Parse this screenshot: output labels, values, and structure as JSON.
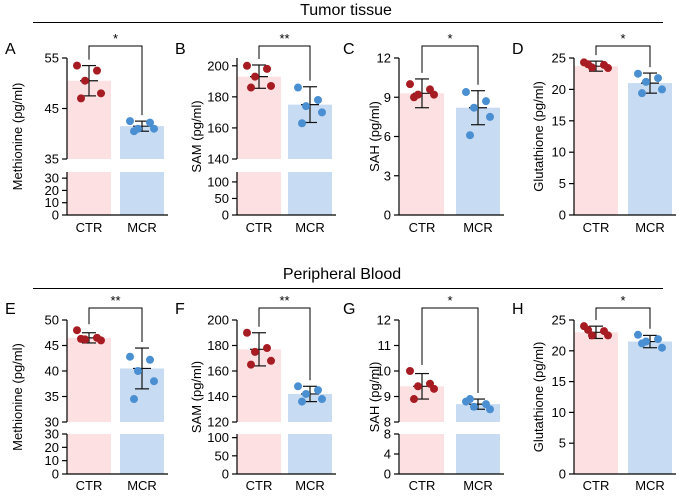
{
  "figure": {
    "section_titles": [
      "Tumor tissue",
      "Peripheral Blood"
    ]
  },
  "colors": {
    "ctr_bar": "#fde1e2",
    "mcr_bar": "#c7dbf2",
    "ctr_point": "#a71c22",
    "mcr_point": "#4a8fd1"
  },
  "chart_data": [
    {
      "type": "bar",
      "panel_letter": "A",
      "section": "Tumor tissue",
      "ylabel": "Methionine (pg/ml)",
      "categories": [
        "CTR",
        "MCR"
      ],
      "means": [
        50.5,
        41.5
      ],
      "sd": [
        3.0,
        1.0
      ],
      "points": [
        [
          53.5,
          52.5,
          50.5,
          48,
          47
        ],
        [
          42.5,
          42.2,
          41,
          41,
          40.5
        ]
      ],
      "axis": {
        "upper": {
          "min": 35,
          "max": 55,
          "ticks": [
            35,
            45,
            55
          ]
        },
        "lower": {
          "min": 0,
          "max": 35,
          "ticks": [
            0,
            10,
            20,
            30
          ]
        }
      },
      "significance": "*"
    },
    {
      "type": "bar",
      "panel_letter": "B",
      "section": "Tumor tissue",
      "ylabel": "SAM (pg/ml)",
      "categories": [
        "CTR",
        "MCR"
      ],
      "means": [
        193,
        175
      ],
      "sd": [
        7.5,
        11.5
      ],
      "points": [
        [
          200,
          198,
          193,
          187,
          186
        ],
        [
          186,
          178,
          174,
          170,
          163
        ]
      ],
      "axis": {
        "upper": {
          "min": 140,
          "max": 205,
          "ticks": [
            140,
            160,
            180,
            200
          ]
        },
        "lower": {
          "min": 0,
          "max": 130,
          "ticks": [
            0,
            50,
            100
          ]
        }
      },
      "significance": "**"
    },
    {
      "type": "bar",
      "panel_letter": "C",
      "section": "Tumor tissue",
      "ylabel": "SAH (pg/ml)",
      "categories": [
        "CTR",
        "MCR"
      ],
      "means": [
        9.3,
        8.2
      ],
      "sd": [
        1.1,
        1.3
      ],
      "points": [
        [
          10,
          9.6,
          9.2,
          9.2,
          9.0
        ],
        [
          9.4,
          8.7,
          8.2,
          7.5,
          6.1
        ]
      ],
      "axis": {
        "single": {
          "min": 0,
          "max": 12,
          "ticks": [
            0,
            3,
            6,
            9,
            12
          ]
        }
      },
      "significance": "*"
    },
    {
      "type": "bar",
      "panel_letter": "D",
      "section": "Tumor tissue",
      "ylabel": "Glutathione (pg/ml)",
      "categories": [
        "CTR",
        "MCR"
      ],
      "means": [
        23.7,
        21.0
      ],
      "sd": [
        0.8,
        1.6
      ],
      "points": [
        [
          24.3,
          23.9,
          23.5,
          23.4,
          24.0
        ],
        [
          22.5,
          21.8,
          21.2,
          20.0,
          19.4
        ]
      ],
      "axis": {
        "single": {
          "min": 0,
          "max": 25,
          "ticks": [
            0,
            5,
            10,
            15,
            20,
            25
          ]
        }
      },
      "significance": "*"
    },
    {
      "type": "bar",
      "panel_letter": "E",
      "section": "Peripheral Blood",
      "ylabel": "Methionine (pg/ml)",
      "categories": [
        "CTR",
        "MCR"
      ],
      "means": [
        46.5,
        40.5
      ],
      "sd": [
        1.0,
        4.0
      ],
      "points": [
        [
          48.0,
          46.5,
          46.2,
          46.0,
          46.3
        ],
        [
          42.8,
          42.2,
          40.0,
          38.0,
          34.5
        ]
      ],
      "axis": {
        "upper": {
          "min": 30,
          "max": 50,
          "ticks": [
            30,
            35,
            40,
            45,
            50
          ]
        },
        "lower": {
          "min": 0,
          "max": 30,
          "ticks": [
            0,
            10,
            20,
            30
          ]
        }
      },
      "significance": "**"
    },
    {
      "type": "bar",
      "panel_letter": "F",
      "section": "Peripheral Blood",
      "ylabel": "SAM (pg/ml)",
      "categories": [
        "CTR",
        "MCR"
      ],
      "means": [
        177,
        142
      ],
      "sd": [
        13,
        6
      ],
      "points": [
        [
          190,
          178,
          175,
          168,
          165
        ],
        [
          148,
          145,
          142,
          138,
          136
        ]
      ],
      "axis": {
        "upper": {
          "min": 120,
          "max": 200,
          "ticks": [
            120,
            140,
            160,
            180,
            200
          ]
        },
        "lower": {
          "min": 0,
          "max": 110,
          "ticks": [
            0,
            50,
            100
          ]
        }
      },
      "significance": "**"
    },
    {
      "type": "bar",
      "panel_letter": "G",
      "section": "Peripheral Blood",
      "ylabel": "SAH (pg/ml)",
      "categories": [
        "CTR",
        "MCR"
      ],
      "means": [
        9.4,
        8.7
      ],
      "sd": [
        0.5,
        0.2
      ],
      "points": [
        [
          10.0,
          9.5,
          9.4,
          9.3,
          8.9
        ],
        [
          8.8,
          8.7,
          8.6,
          8.5,
          8.9
        ]
      ],
      "axis": {
        "upper": {
          "min": 8,
          "max": 12,
          "ticks": [
            8,
            9,
            10,
            11,
            12
          ]
        },
        "lower": {
          "min": 0,
          "max": 8,
          "ticks": [
            0,
            4,
            8
          ]
        }
      },
      "significance": "*"
    },
    {
      "type": "bar",
      "panel_letter": "H",
      "section": "Peripheral Blood",
      "ylabel": "Glutathione (pg/ml)",
      "categories": [
        "CTR",
        "MCR"
      ],
      "means": [
        23.0,
        21.5
      ],
      "sd": [
        1.0,
        1.0
      ],
      "points": [
        [
          24.0,
          23.2,
          22.5,
          22.5,
          23.4
        ],
        [
          22.6,
          21.9,
          21.5,
          20.5,
          21.2
        ]
      ],
      "axis": {
        "single": {
          "min": 0,
          "max": 25,
          "ticks": [
            0,
            5,
            10,
            15,
            20,
            25
          ]
        }
      },
      "significance": "*"
    }
  ]
}
